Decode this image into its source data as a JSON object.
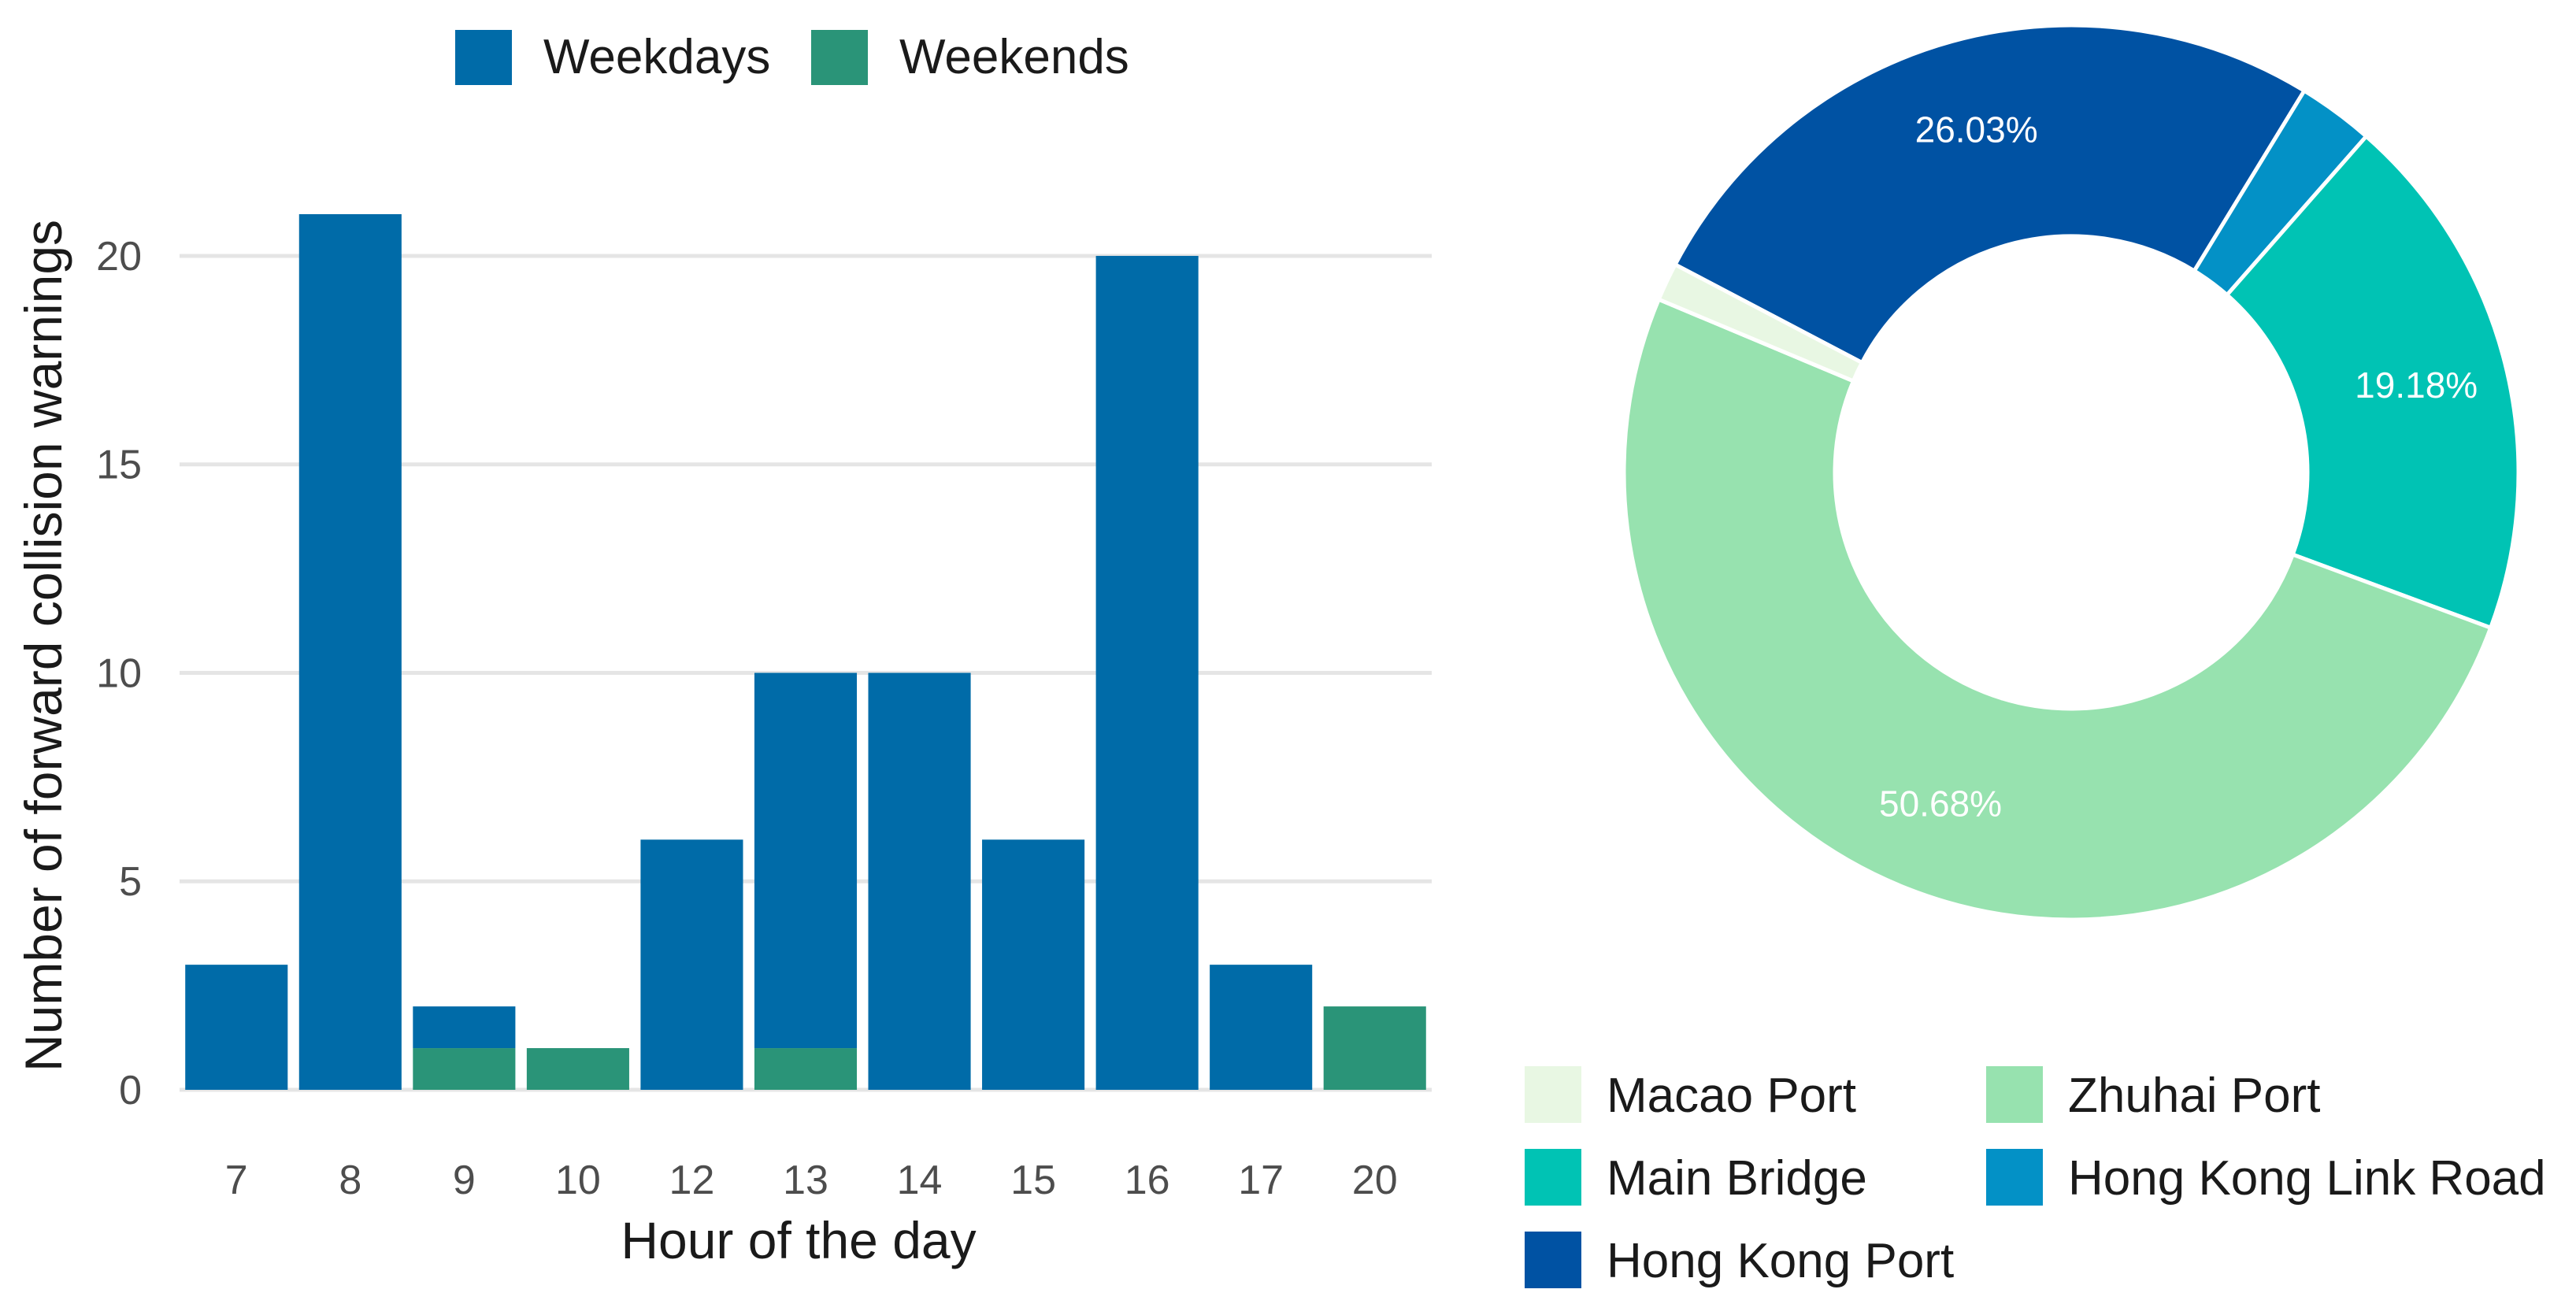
{
  "chart_data": [
    {
      "type": "bar",
      "stacked": true,
      "categories": [
        "7",
        "8",
        "9",
        "10",
        "12",
        "13",
        "14",
        "15",
        "16",
        "17",
        "20"
      ],
      "series": [
        {
          "name": "Weekdays",
          "color": "#006BA8",
          "values": [
            3,
            21,
            1,
            0,
            6,
            9,
            10,
            6,
            20,
            3,
            0
          ]
        },
        {
          "name": "Weekends",
          "color": "#2A9478",
          "values": [
            0,
            0,
            1,
            1,
            0,
            1,
            0,
            0,
            0,
            0,
            2
          ]
        }
      ],
      "xlabel": "Hour of the day",
      "ylabel": "Number of forward collision warnings",
      "ylim": [
        0,
        21
      ],
      "yticks": [
        0,
        5,
        10,
        15,
        20
      ],
      "grid": true,
      "legend": "top"
    },
    {
      "type": "pie",
      "donut": true,
      "slices": [
        {
          "name": "Hong Kong Port",
          "value": 26.03,
          "label": "26.03%",
          "color": "#0052A3"
        },
        {
          "name": "Hong Kong Link Road",
          "value": 2.74,
          "label": "",
          "color": "#0391C6"
        },
        {
          "name": "Main Bridge",
          "value": 19.18,
          "label": "19.18%",
          "color": "#00C3B4"
        },
        {
          "name": "Zhuhai Port",
          "value": 50.68,
          "label": "50.68%",
          "color": "#97E2AF"
        },
        {
          "name": "Macao Port",
          "value": 1.37,
          "label": "",
          "color": "#E8F7E3"
        }
      ],
      "legend_order": [
        "Macao Port",
        "Zhuhai Port",
        "Main Bridge",
        "Hong Kong Link Road",
        "Hong Kong Port"
      ],
      "legend": "bottom"
    }
  ]
}
